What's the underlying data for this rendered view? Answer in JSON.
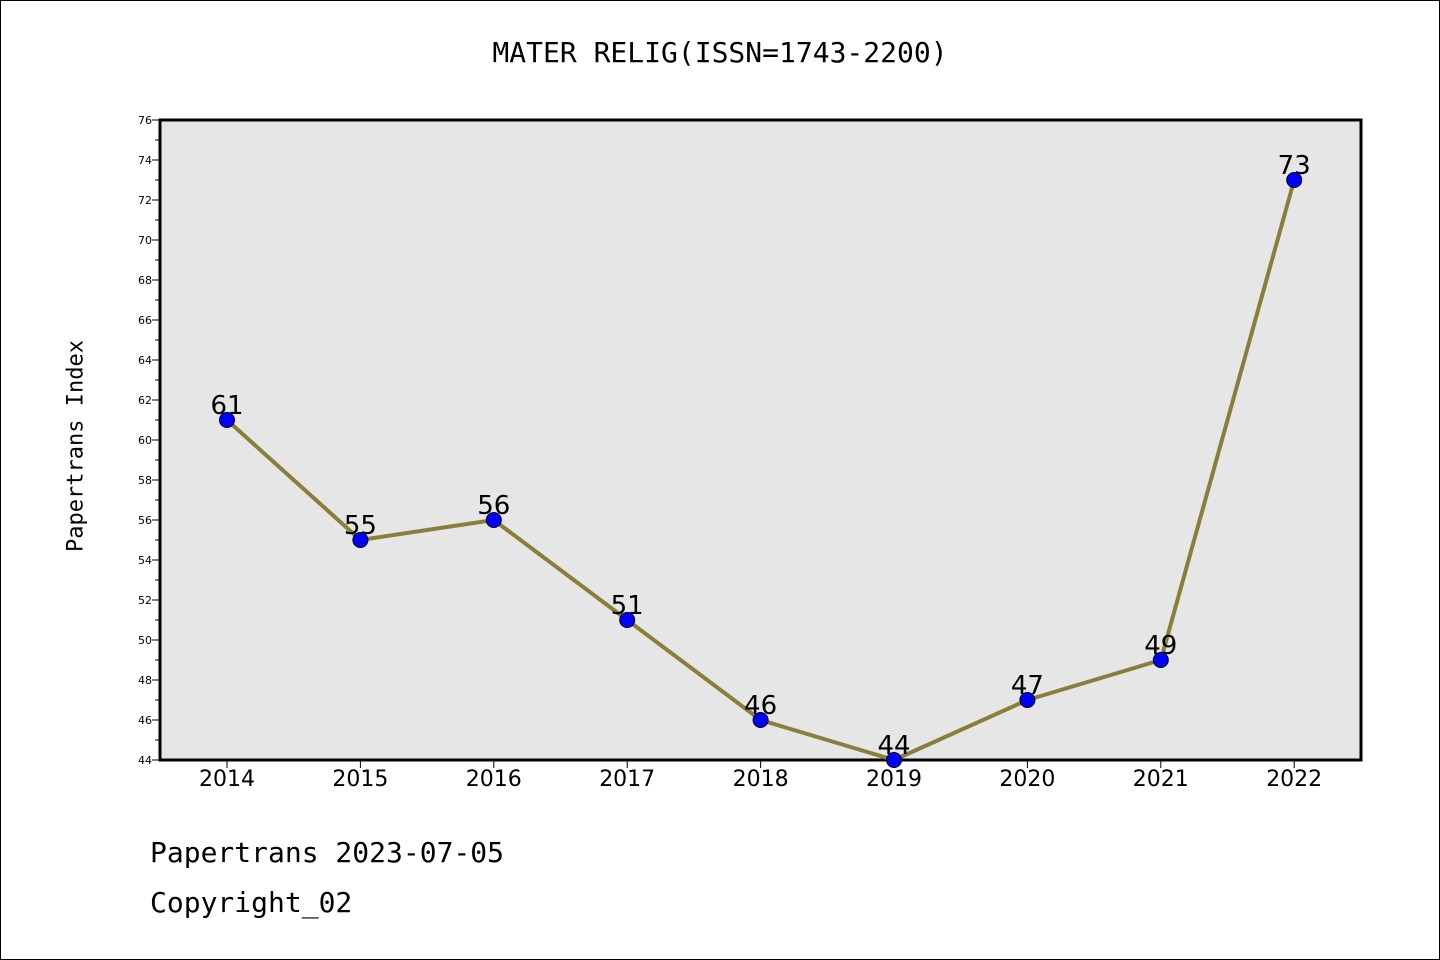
{
  "chart_data": {
    "type": "line",
    "title": "MATER RELIG(ISSN=1743-2200)",
    "xlabel": "",
    "ylabel": "Papertrans Index",
    "categories": [
      "2014",
      "2015",
      "2016",
      "2017",
      "2018",
      "2019",
      "2020",
      "2021",
      "2022"
    ],
    "series": [
      {
        "values": [
          61,
          55,
          56,
          51,
          46,
          44,
          47,
          49,
          73
        ]
      }
    ],
    "ylim": [
      44,
      76
    ],
    "yticks": [
      44,
      46,
      48,
      50,
      52,
      54,
      56,
      58,
      60,
      62,
      64,
      66,
      68,
      70,
      72,
      74,
      76
    ],
    "grid": false,
    "colors": {
      "line": "#8b7d3a",
      "marker": "#0000ff",
      "plot_bg": "#e6e6e6"
    }
  },
  "footer": {
    "date_text": "Papertrans 2023-07-05",
    "copyright_text": "Copyright_02"
  }
}
